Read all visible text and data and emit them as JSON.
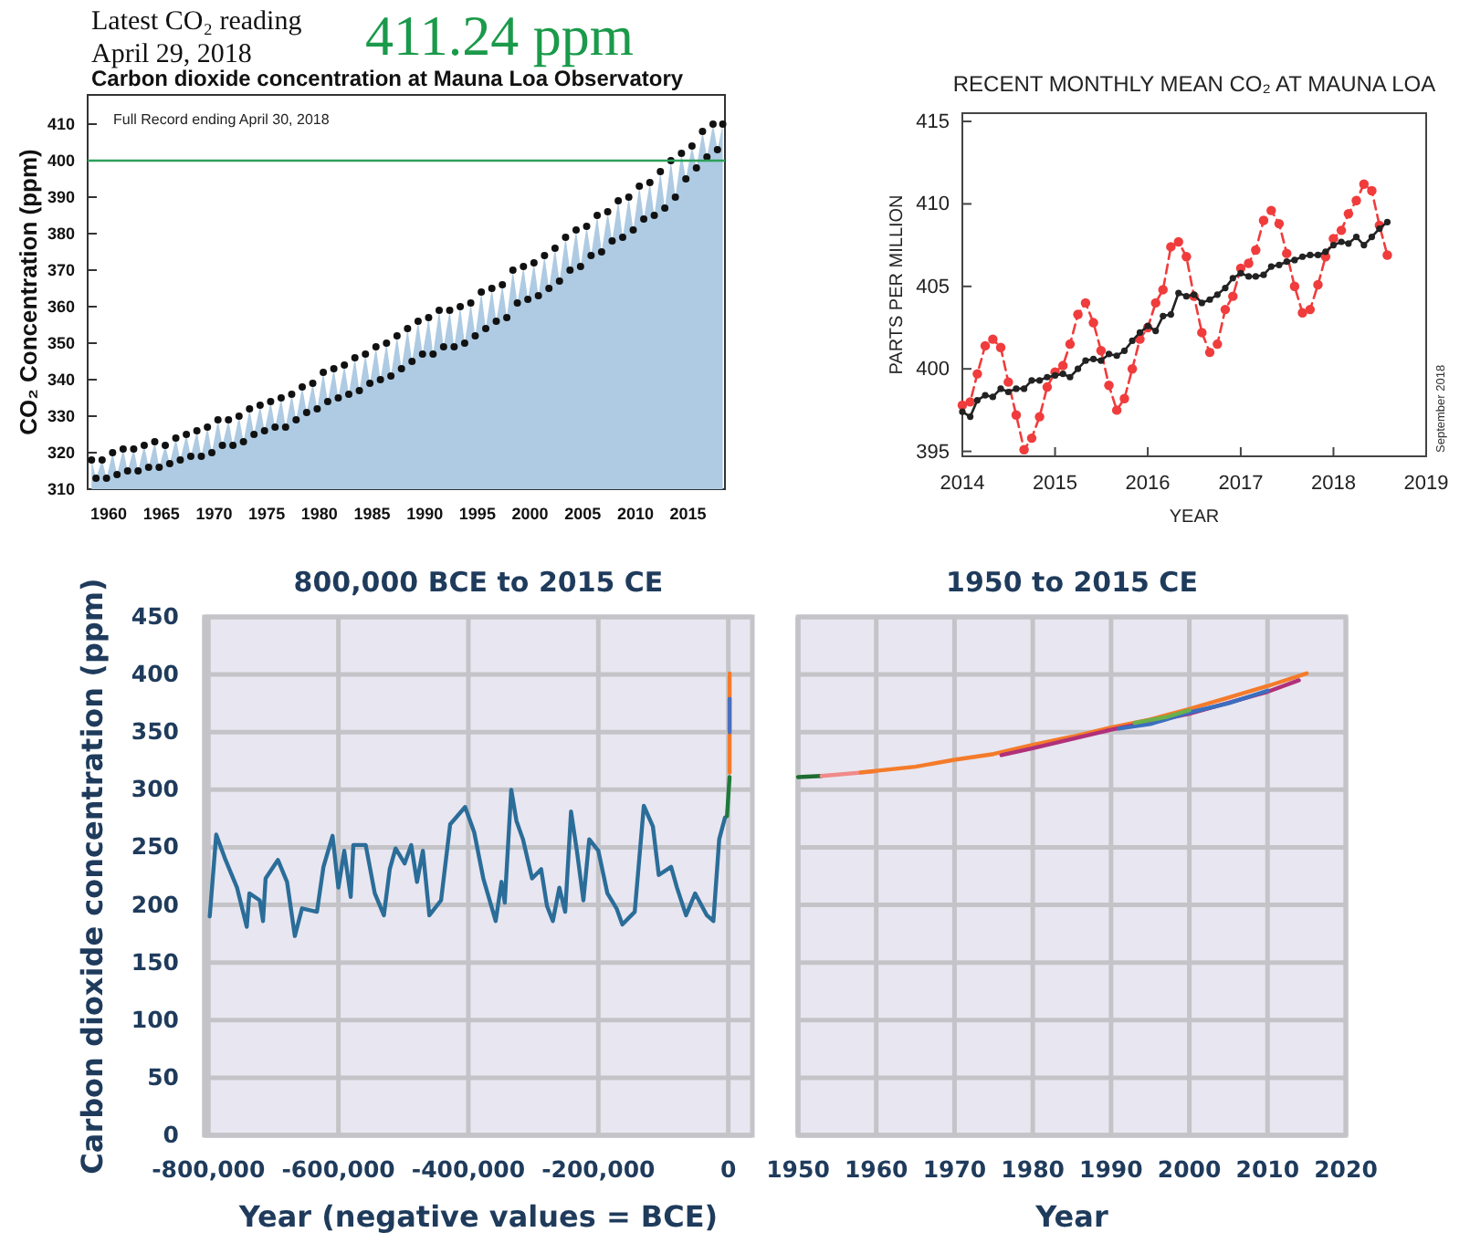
{
  "chart_data": [
    {
      "type": "area",
      "title": "Carbon dioxide concentration at Mauna Loa Observatory",
      "ylabel": "CO₂ Concentration (ppm)",
      "annotations": [
        "Latest CO₂ reading",
        "April 29, 2018",
        "411.24 ppm",
        "Full Record ending April 30, 2018"
      ],
      "x": [
        1958.37,
        1958.79,
        1959.37,
        1959.79,
        1960.37,
        1960.79,
        1961.37,
        1961.79,
        1962.37,
        1962.79,
        1963.37,
        1963.79,
        1964.37,
        1964.79,
        1965.37,
        1965.79,
        1966.37,
        1966.79,
        1967.37,
        1967.79,
        1968.37,
        1968.79,
        1969.37,
        1969.79,
        1970.37,
        1970.79,
        1971.37,
        1971.79,
        1972.37,
        1972.79,
        1973.37,
        1973.79,
        1974.37,
        1974.79,
        1975.37,
        1975.79,
        1976.37,
        1976.79,
        1977.37,
        1977.79,
        1978.37,
        1978.79,
        1979.37,
        1979.79,
        1980.37,
        1980.79,
        1981.37,
        1981.79,
        1982.37,
        1982.79,
        1983.37,
        1983.79,
        1984.37,
        1984.79,
        1985.37,
        1985.79,
        1986.37,
        1986.79,
        1987.37,
        1987.79,
        1988.37,
        1988.79,
        1989.37,
        1989.79,
        1990.37,
        1990.79,
        1991.37,
        1991.79,
        1992.37,
        1992.79,
        1993.37,
        1993.79,
        1994.37,
        1994.79,
        1995.37,
        1995.79,
        1996.37,
        1996.79,
        1997.37,
        1997.79,
        1998.37,
        1998.79,
        1999.37,
        1999.79,
        2000.37,
        2000.79,
        2001.37,
        2001.79,
        2002.37,
        2002.79,
        2003.37,
        2003.79,
        2004.37,
        2004.79,
        2005.37,
        2005.79,
        2006.37,
        2006.79,
        2007.37,
        2007.79,
        2008.37,
        2008.79,
        2009.37,
        2009.79,
        2010.37,
        2010.79,
        2011.37,
        2011.79,
        2012.37,
        2012.79,
        2013.37,
        2013.79,
        2014.37,
        2014.79,
        2015.37,
        2015.79,
        2016.37,
        2016.79,
        2017.37,
        2017.79,
        2018.29
      ],
      "series": [
        {
          "color": "#aecbe3",
          "values": [
            318,
            313,
            318,
            313,
            320,
            314,
            321,
            315,
            321,
            315,
            322,
            316,
            323,
            316,
            322,
            317,
            324,
            318,
            325,
            319,
            326,
            319,
            327,
            320,
            329,
            322,
            329,
            322,
            330,
            323,
            332,
            325,
            333,
            326,
            334,
            327,
            335,
            327,
            336,
            329,
            338,
            331,
            339,
            332,
            342,
            334,
            343,
            335,
            344,
            336,
            346,
            337,
            347,
            339,
            349,
            340,
            350,
            341,
            352,
            343,
            354,
            345,
            356,
            347,
            357,
            347,
            359,
            349,
            359,
            349,
            360,
            350,
            361,
            352,
            364,
            354,
            365,
            356,
            366,
            357,
            370,
            361,
            371,
            362,
            372,
            363,
            374,
            365,
            376,
            367,
            379,
            370,
            381,
            371,
            382,
            374,
            385,
            375,
            386,
            378,
            389,
            379,
            390,
            381,
            393,
            384,
            394,
            385,
            397,
            387,
            400,
            390,
            402,
            395,
            404,
            398,
            408,
            401,
            410,
            403,
            410
          ]
        }
      ],
      "marker": "circle",
      "xlim": [
        1958,
        2018.5
      ],
      "xticks": [
        1960,
        1965,
        1970,
        1975,
        1980,
        1985,
        1990,
        1995,
        2000,
        2005,
        2010,
        2015
      ],
      "ylim": [
        310,
        418
      ],
      "yticks": [
        310,
        320,
        330,
        340,
        350,
        360,
        370,
        380,
        390,
        400,
        410
      ],
      "ref_lines": [
        {
          "axis": "y",
          "value": 400,
          "color": "#2ca05a"
        }
      ]
    },
    {
      "type": "line",
      "title": "RECENT MONTHLY MEAN CO₂ AT MAUNA LOA",
      "xlabel": "YEAR",
      "ylabel": "PARTS PER MILLION",
      "annotations": [
        "September 2018"
      ],
      "x": [
        "2014-01",
        "2014-02",
        "2014-03",
        "2014-04",
        "2014-05",
        "2014-06",
        "2014-07",
        "2014-08",
        "2014-09",
        "2014-10",
        "2014-11",
        "2014-12",
        "2015-01",
        "2015-02",
        "2015-03",
        "2015-04",
        "2015-05",
        "2015-06",
        "2015-07",
        "2015-08",
        "2015-09",
        "2015-10",
        "2015-11",
        "2015-12",
        "2016-01",
        "2016-02",
        "2016-03",
        "2016-04",
        "2016-05",
        "2016-06",
        "2016-07",
        "2016-08",
        "2016-09",
        "2016-10",
        "2016-11",
        "2016-12",
        "2017-01",
        "2017-02",
        "2017-03",
        "2017-04",
        "2017-05",
        "2017-06",
        "2017-07",
        "2017-08",
        "2017-09",
        "2017-10",
        "2017-11",
        "2017-12",
        "2018-01",
        "2018-02",
        "2018-03",
        "2018-04",
        "2018-05",
        "2018-06",
        "2018-07",
        "2018-08"
      ],
      "series": [
        {
          "color": "#f03c3c",
          "line_style": "dashed",
          "values": [
            397.8,
            398.0,
            399.7,
            401.4,
            401.8,
            401.3,
            399.2,
            397.2,
            395.1,
            395.8,
            397.1,
            398.9,
            399.8,
            400.2,
            401.5,
            403.3,
            404.0,
            402.8,
            401.1,
            399.0,
            397.5,
            398.2,
            400.0,
            401.8,
            402.5,
            404.0,
            404.8,
            407.4,
            407.7,
            406.8,
            404.4,
            402.2,
            401.0,
            401.5,
            403.6,
            404.4,
            406.1,
            406.4,
            407.2,
            409.0,
            409.6,
            408.8,
            407.0,
            405.0,
            403.4,
            403.6,
            405.1,
            406.8,
            407.9,
            408.4,
            409.4,
            410.2,
            411.2,
            410.8,
            408.7,
            406.9
          ]
        },
        {
          "color": "#222222",
          "line_style": "solid",
          "values": [
            397.4,
            397.1,
            398.1,
            398.4,
            398.3,
            398.8,
            398.6,
            398.8,
            398.8,
            399.3,
            399.3,
            399.5,
            399.6,
            399.7,
            399.5,
            400.0,
            400.5,
            400.6,
            400.5,
            400.9,
            400.8,
            401.1,
            401.7,
            402.2,
            402.6,
            402.3,
            403.2,
            403.3,
            404.6,
            404.4,
            404.5,
            404.0,
            404.2,
            404.5,
            404.9,
            405.5,
            405.8,
            405.6,
            405.6,
            405.7,
            406.2,
            406.3,
            406.5,
            406.6,
            406.8,
            406.9,
            406.9,
            407.1,
            407.5,
            407.7,
            407.6,
            408.0,
            407.5,
            408.0,
            408.5,
            408.9
          ]
        }
      ],
      "marker": "circle",
      "xlim": [
        "2014",
        "2019"
      ],
      "xticks": [
        "2014",
        "2015",
        "2016",
        "2017",
        "2018",
        "2019"
      ],
      "ylim": [
        394.7,
        415.5
      ],
      "yticks": [
        395,
        400,
        405,
        410,
        415
      ]
    },
    {
      "type": "line",
      "title": "800,000 BCE to 2015 CE",
      "xlabel": "Year (negative values = BCE)",
      "ylabel": "Carbon dioxide concentration (ppm)",
      "series": [
        {
          "color": "#2b6d99",
          "x": [
            -798000,
            -788000,
            -775000,
            -756000,
            -741000,
            -737000,
            -721000,
            -716000,
            -712000,
            -693000,
            -679000,
            -667000,
            -656000,
            -633000,
            -623000,
            -609000,
            -600000,
            -591000,
            -581000,
            -577000,
            -558000,
            -544000,
            -530000,
            -521000,
            -512000,
            -498000,
            -488000,
            -479000,
            -470000,
            -460000,
            -442000,
            -428000,
            -405000,
            -391000,
            -377000,
            -358000,
            -349000,
            -344000,
            -334000,
            -326000,
            -316000,
            -302000,
            -288000,
            -279000,
            -270000,
            -260000,
            -251000,
            -242000,
            -233000,
            -223000,
            -214000,
            -200000,
            -186000,
            -172000,
            -163000,
            -144000,
            -130000,
            -116000,
            -107000,
            -88000,
            -79000,
            -65000,
            -51000,
            -33000,
            -23000,
            -14000,
            -5000
          ],
          "values": [
            190,
            261,
            241,
            215,
            181,
            210,
            204,
            186,
            223,
            239,
            220,
            173,
            197,
            194,
            233,
            260,
            215,
            247,
            207,
            252,
            252,
            210,
            191,
            231,
            249,
            236,
            252,
            220,
            247,
            191,
            204,
            270,
            285,
            263,
            223,
            186,
            220,
            202,
            300,
            273,
            257,
            223,
            231,
            199,
            186,
            215,
            194,
            281,
            247,
            204,
            257,
            247,
            210,
            197,
            183,
            194,
            286,
            268,
            226,
            233,
            215,
            191,
            210,
            191,
            186,
            257,
            276
          ]
        },
        {
          "color": "#1e7a3a",
          "x": [
            -2000,
            1950
          ],
          "values": [
            277,
            311
          ]
        },
        {
          "color": "#f47b2a",
          "x": [
            1958,
            2015
          ],
          "values": [
            315,
            401
          ]
        },
        {
          "color": "#4a6fc0",
          "x": [
            1988,
            2005
          ],
          "values": [
            350,
            379
          ]
        }
      ],
      "xlim": [
        -806000,
        37000
      ],
      "xticks": [
        {
          "value": -800000,
          "label": "-800,000"
        },
        {
          "value": -600000,
          "label": "-600,000"
        },
        {
          "value": -400000,
          "label": "-400,000"
        },
        {
          "value": -200000,
          "label": "-200,000"
        },
        0
      ],
      "ylim": [
        0,
        450
      ],
      "yticks": [
        0,
        50,
        100,
        150,
        200,
        250,
        300,
        350,
        400,
        450
      ],
      "grid": true
    },
    {
      "type": "line",
      "title": "1950 to 2015 CE",
      "xlabel": "Year",
      "series": [
        {
          "color": "#1e6b30",
          "x": [
            1950,
            1953
          ],
          "values": [
            311,
            312
          ]
        },
        {
          "color": "#f08a8a",
          "x": [
            1953,
            1960
          ],
          "values": [
            312,
            316
          ]
        },
        {
          "color": "#f47b2a",
          "x": [
            1958,
            1965,
            1970,
            1975,
            1980,
            1985,
            1990,
            1995,
            2000,
            2005,
            2010,
            2015
          ],
          "values": [
            315,
            320,
            326,
            331,
            339,
            346,
            354,
            361,
            370,
            380,
            390,
            401
          ]
        },
        {
          "color": "#b0307a",
          "x": [
            1976,
            1980,
            1990,
            2000,
            2010,
            2014
          ],
          "values": [
            330,
            336,
            352,
            366,
            385,
            395
          ]
        },
        {
          "color": "#3a6fc0",
          "x": [
            1991,
            1995,
            2000,
            2005,
            2010
          ],
          "values": [
            353,
            357,
            367,
            375,
            386
          ]
        },
        {
          "color": "#6ab04c",
          "x": [
            1993,
            1997,
            2000
          ],
          "values": [
            358,
            363,
            369
          ]
        }
      ],
      "xlim": [
        1950,
        2020
      ],
      "xticks": [
        1950,
        1960,
        1970,
        1980,
        1990,
        2000,
        2010,
        2020
      ],
      "ylim": [
        0,
        450
      ],
      "yticks": [
        0,
        50,
        100,
        150,
        200,
        250,
        300,
        350,
        400,
        450
      ],
      "grid": true,
      "tick_labels": "x"
    }
  ]
}
